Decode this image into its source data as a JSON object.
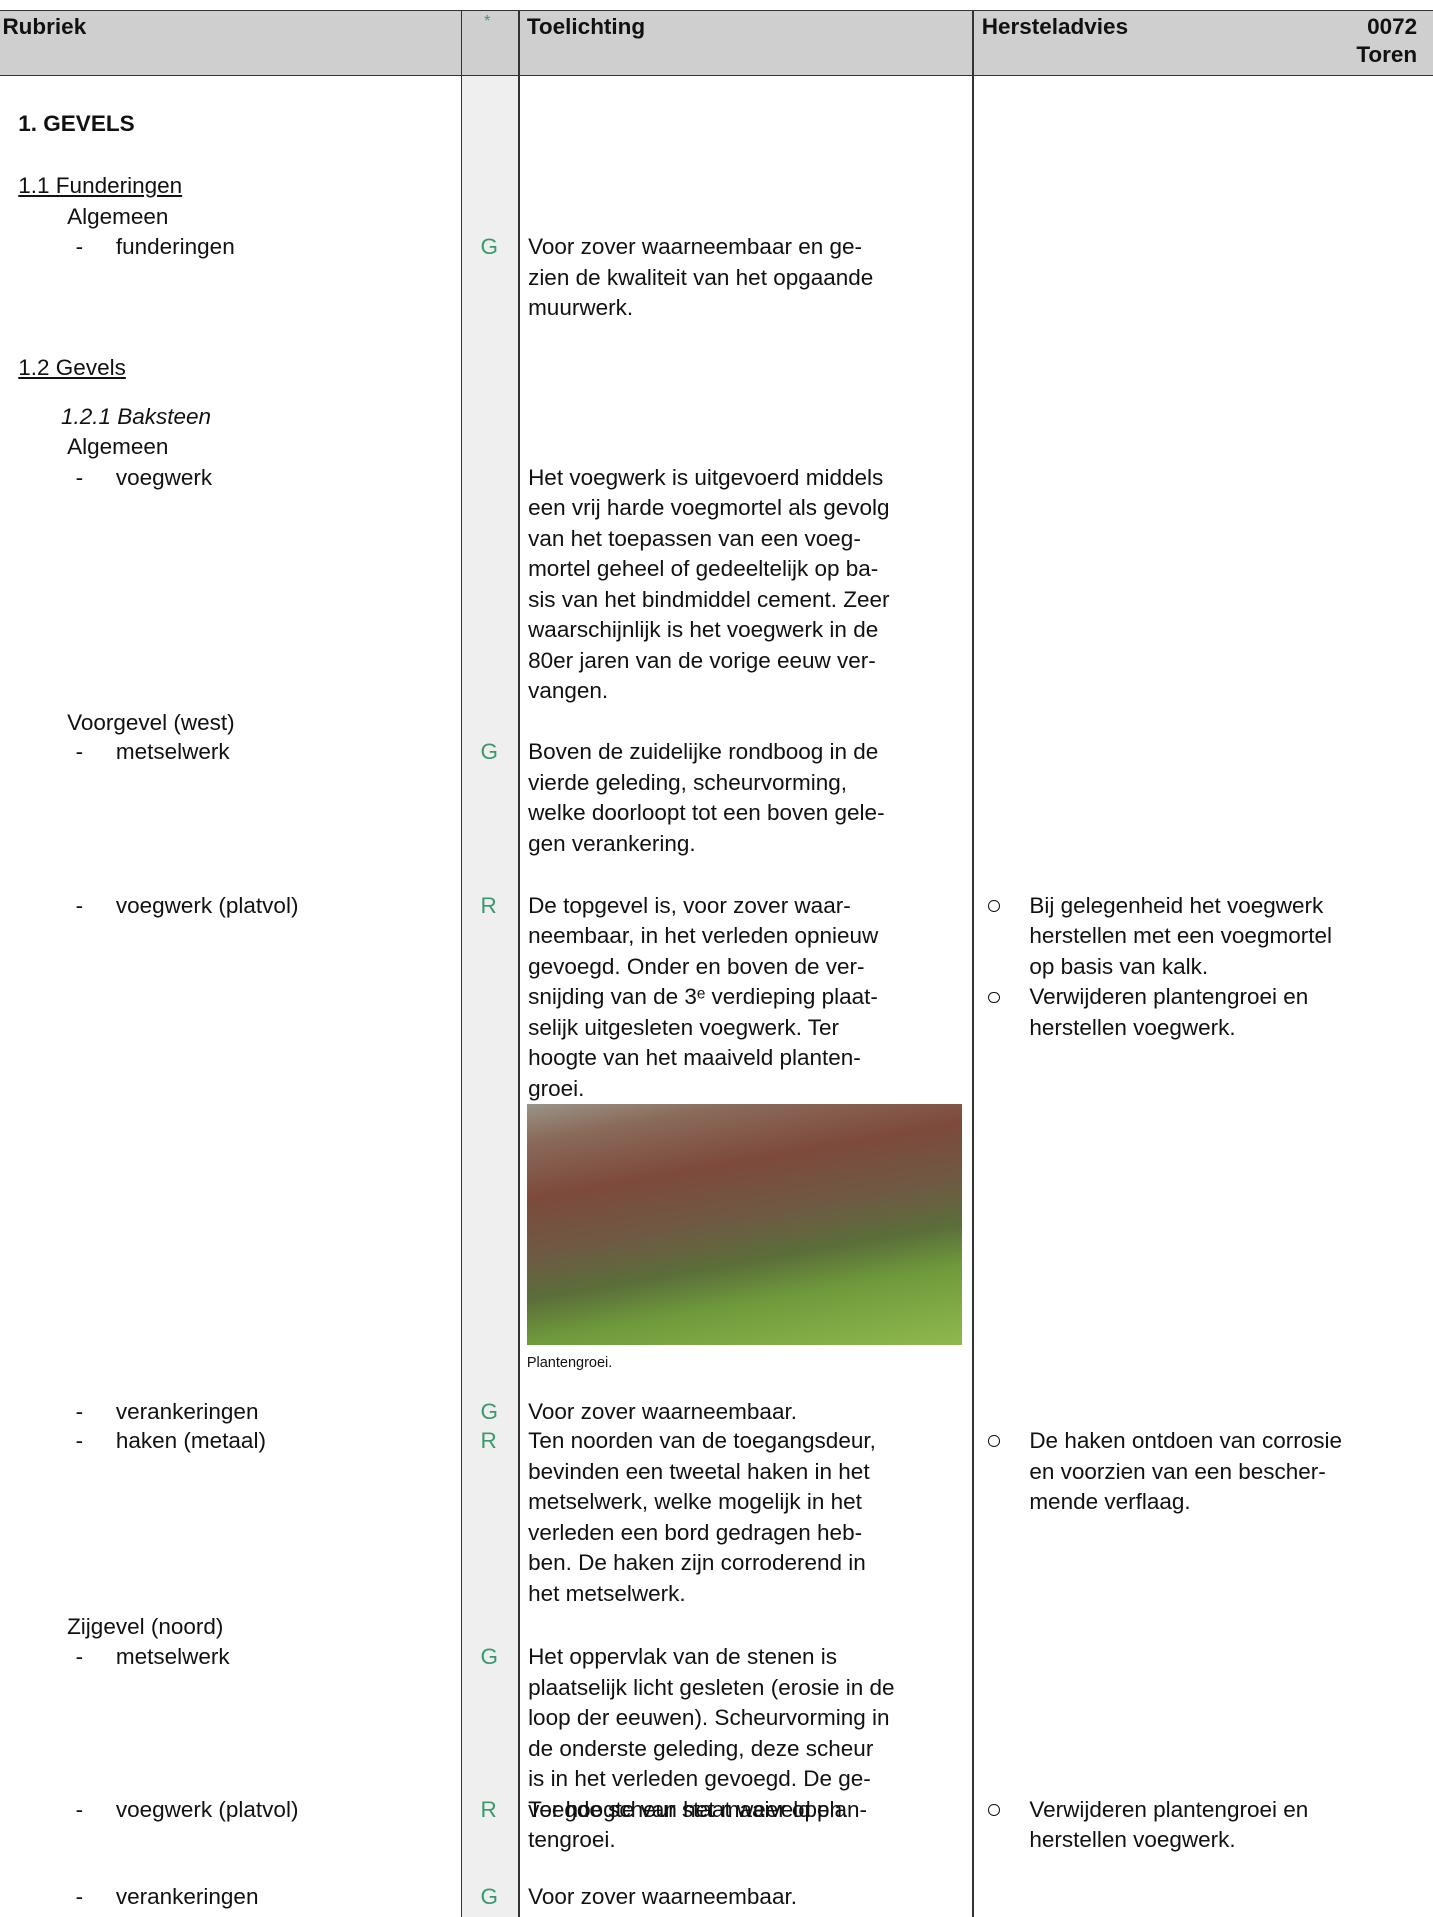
{
  "header": {
    "rubriek": "Rubriek",
    "star": "*",
    "toelichting": "Toelichting",
    "herstel": "Hersteladvies",
    "code": "0072",
    "object": "Toren"
  },
  "rows": [
    {
      "rubriek": "1. GEVELS"
    },
    {
      "rubriek": "1.1  Funderingen"
    },
    {
      "rubriek": "Algemeen"
    },
    {
      "bullet": "-",
      "rubriek": "funderingen",
      "star": "G",
      "toelichting": [
        "Voor zover waarneembaar en ge-",
        "zien de kwaliteit van het opgaande",
        "muurwerk."
      ]
    },
    {
      "rubriek": "1.2  Gevels"
    },
    {
      "rubriek": "1.2.1  Baksteen"
    },
    {
      "rubriek": "Algemeen"
    },
    {
      "bullet": "-",
      "rubriek": "voegwerk",
      "toelichting": [
        "Het voegwerk is uitgevoerd middels",
        "een vrij harde voegmortel als gevolg",
        "van het toepassen van een voeg-",
        "mortel geheel of gedeeltelijk op ba-",
        "sis van het bindmiddel cement. Zeer",
        "waarschijnlijk is het voegwerk in de",
        "80er jaren van de vorige eeuw ver-",
        "vangen."
      ]
    },
    {
      "rubriek": "Voorgevel (west)"
    },
    {
      "bullet": "-",
      "rubriek": "metselwerk",
      "star": "G",
      "toelichting": [
        "Boven de zuidelijke rondboog in de",
        "vierde geleding, scheurvorming,",
        "welke doorloopt tot een boven gele-",
        "gen verankering."
      ]
    },
    {
      "bullet": "-",
      "rubriek": "voegwerk (platvol)",
      "star": "R",
      "toelichting": [
        "De topgevel is, voor zover waar-",
        "neembaar, in het verleden opnieuw",
        "gevoegd. Onder en boven de ver-",
        "snijding van de 3ᵉ verdieping plaat-",
        "selijk uitgesleten voegwerk. Ter",
        "hoogte van het maaiveld planten-",
        "groei."
      ],
      "photo_caption": "Plantengroei.",
      "advies": [
        [
          "Bij gelegenheid het voegwerk",
          "herstellen met een voegmortel",
          "op basis van kalk."
        ],
        [
          "Verwijderen plantengroei en",
          "herstellen voegwerk."
        ]
      ]
    },
    {
      "bullet": "-",
      "rubriek": "verankeringen",
      "star": "G",
      "toelichting": [
        "Voor zover waarneembaar."
      ]
    },
    {
      "bullet": "-",
      "rubriek": "haken (metaal)",
      "star": "R",
      "toelichting": [
        "Ten noorden van de toegangsdeur,",
        "bevinden een tweetal haken in het",
        "metselwerk, welke mogelijk in het",
        "verleden een bord gedragen heb-",
        "ben. De haken zijn corroderend in",
        "het metselwerk."
      ],
      "advies": [
        [
          "De haken ontdoen van corrosie",
          "en voorzien van een bescher-",
          "mende verflaag."
        ]
      ]
    },
    {
      "rubriek": "Zijgevel (noord)"
    },
    {
      "bullet": "-",
      "rubriek": "metselwerk",
      "star": "G",
      "toelichting": [
        "Het oppervlak van de stenen is",
        "plaatselijk licht gesleten (erosie in de",
        "loop der eeuwen). Scheurvorming in",
        "de onderste geleding, deze scheur",
        "is in het verleden gevoegd. De ge-",
        "voegde scheur staat weer open."
      ]
    },
    {
      "bullet": "-",
      "rubriek": "voegwerk (platvol)",
      "star": "R",
      "toelichting": [
        "Ter hoogte van het maaiveld plan-",
        "tengroei."
      ],
      "advies": [
        [
          "Verwijderen plantengroei en",
          "herstellen voegwerk."
        ]
      ]
    },
    {
      "bullet": "-",
      "rubriek": "verankeringen",
      "star": "G",
      "toelichting": [
        "Voor zover waarneembaar."
      ]
    }
  ]
}
